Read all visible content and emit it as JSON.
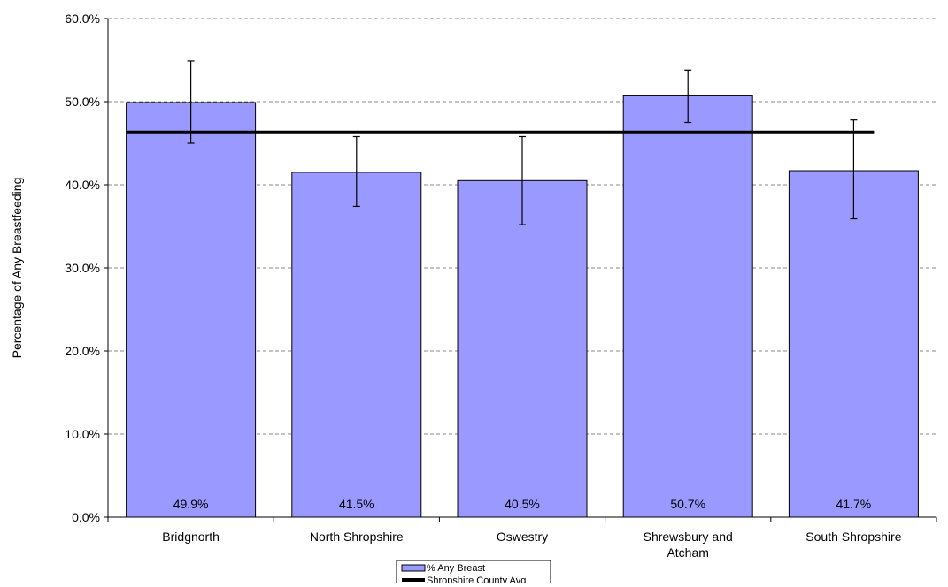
{
  "chart_data": {
    "type": "bar",
    "title": "",
    "xlabel": "",
    "ylabel": "Percentage of  Any Breastfeeding",
    "ylim": [
      0,
      60
    ],
    "yticks": [
      0,
      10,
      20,
      30,
      40,
      50,
      60
    ],
    "ytick_labels": [
      "0.0%",
      "10.0%",
      "20.0%",
      "30.0%",
      "40.0%",
      "50.0%",
      "60.0%"
    ],
    "grid": "horizontal dashed",
    "categories": [
      [
        "Bridgnorth"
      ],
      [
        "North Shropshire"
      ],
      [
        "Oswestry"
      ],
      [
        "Shrewsbury and",
        "Atcham"
      ],
      [
        "South Shropshire"
      ]
    ],
    "series": [
      {
        "name": "%  Any Breast",
        "type": "bar",
        "color": "#9999ff",
        "values": [
          49.9,
          41.5,
          40.5,
          50.7,
          41.7
        ],
        "value_labels": [
          "49.9%",
          "41.5%",
          "40.5%",
          "50.7%",
          "41.7%"
        ],
        "error_low": [
          45.0,
          37.4,
          35.2,
          47.5,
          35.9
        ],
        "error_high": [
          54.9,
          45.8,
          45.8,
          53.8,
          47.8
        ]
      },
      {
        "name": "Shropshire County Avg",
        "type": "line",
        "color": "#000000",
        "value": 46.3
      }
    ],
    "legend": "bottom-center"
  }
}
